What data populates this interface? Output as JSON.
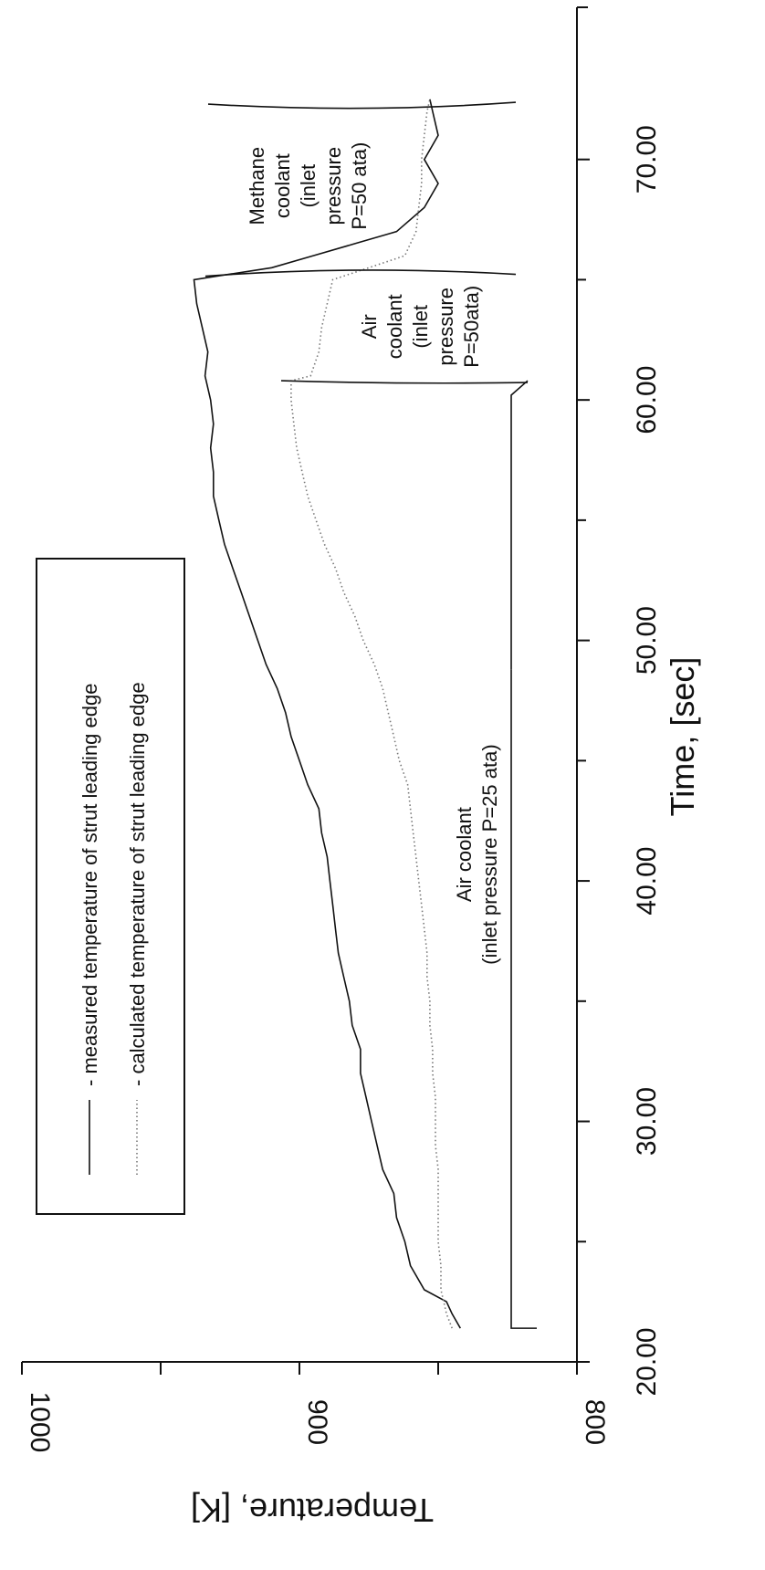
{
  "chart_data": {
    "type": "line",
    "xlabel": "Time, [sec]",
    "ylabel": "Temperature, [K]",
    "xlim": [
      20,
      72
    ],
    "ylim": [
      800,
      1000
    ],
    "x_ticks": [
      20,
      30,
      40,
      50,
      60,
      70
    ],
    "x_tick_labels": [
      "20.00",
      "30.00",
      "40.00",
      "50.00",
      "60.00",
      "70.00"
    ],
    "y_ticks": [
      800,
      900,
      1000
    ],
    "y_tick_labels": [
      "800",
      "900",
      "1000"
    ],
    "legend": {
      "position": "top-left",
      "entries": [
        "- measured temperature of strut leading edge",
        "- calculated temperature of strut leading edge"
      ]
    },
    "series": [
      {
        "style": "solid",
        "x": [
          21.4,
          22,
          22.5,
          23,
          24,
          25,
          26,
          27,
          28,
          29,
          30,
          31,
          32,
          33,
          34,
          35,
          36,
          37,
          38,
          39,
          40,
          41,
          42,
          43,
          44,
          45,
          46,
          47,
          48,
          49,
          50,
          51,
          52,
          53,
          54,
          55,
          56,
          57,
          58,
          59,
          60,
          61,
          62,
          63,
          64,
          65,
          65.5,
          66,
          66.5,
          67,
          68,
          69,
          70,
          71,
          72,
          72.5
        ],
        "y": [
          842,
          845,
          847,
          855,
          860,
          862,
          865,
          866,
          870,
          872,
          874,
          876,
          878,
          878,
          881,
          882,
          884,
          886,
          887,
          888,
          889,
          890,
          892,
          893,
          897,
          900,
          903,
          905,
          908,
          912,
          915,
          918,
          921,
          924,
          927,
          929,
          931,
          931,
          932,
          931,
          932,
          934,
          933,
          935,
          937,
          938,
          910,
          895,
          880,
          865,
          855,
          850,
          855,
          850,
          852,
          853
        ]
      },
      {
        "style": "dotted",
        "x": [
          21.4,
          22,
          23,
          24,
          25,
          26,
          27,
          28,
          29,
          30,
          31,
          32,
          33,
          34,
          35,
          36,
          37,
          38,
          39,
          40,
          41,
          42,
          43,
          44,
          45,
          46,
          47,
          48,
          49,
          50,
          51,
          52,
          53,
          54,
          55,
          56,
          57,
          58,
          59,
          60,
          60.8,
          61,
          62,
          63,
          64,
          65,
          65.5,
          66,
          67,
          68,
          69,
          70,
          71,
          72,
          72.5
        ],
        "y": [
          845,
          847,
          849,
          849,
          850,
          850,
          850,
          850,
          851,
          851,
          851,
          852,
          852,
          853,
          853,
          854,
          854,
          855,
          856,
          857,
          858,
          859,
          860,
          861,
          864,
          866,
          868,
          870,
          873,
          877,
          880,
          884,
          887,
          891,
          894,
          897,
          899,
          901,
          902,
          903,
          903,
          896,
          893,
          892,
          890,
          888,
          875,
          862,
          858,
          857,
          856,
          856,
          855,
          854,
          853
        ]
      }
    ],
    "annotations": [
      {
        "lines": [
          "Air coolant",
          "(inlet pressure P=25 ata)"
        ],
        "x_range": [
          21.4,
          60.8
        ]
      },
      {
        "lines": [
          "Air",
          "coolant",
          "(inlet",
          "pressure",
          "P=50ata)"
        ],
        "x_range": [
          60.8,
          65.3
        ]
      },
      {
        "lines": [
          "Methane",
          "coolant",
          "(inlet",
          "pressure",
          "P=50 ata)"
        ],
        "x_range": [
          65.3,
          72.5
        ]
      }
    ]
  }
}
